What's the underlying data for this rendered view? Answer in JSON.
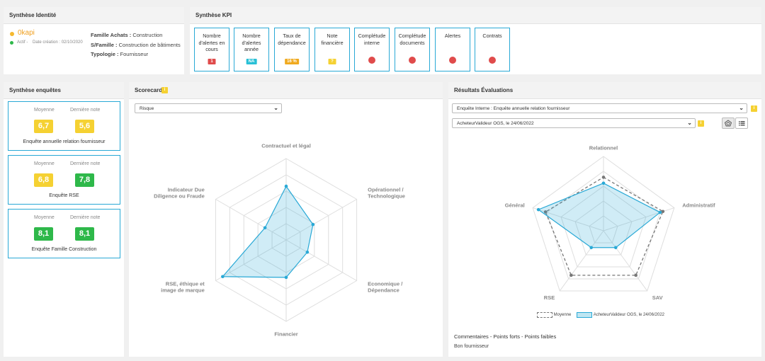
{
  "colors": {
    "accent": "#29a9d6",
    "red": "#e04b4b",
    "yellow": "#f5d132",
    "green": "#2eb84a",
    "orange": "#f0a91e",
    "cyan": "#29c0d6"
  },
  "identity": {
    "title": "Synthèse Identité",
    "name": "0kapi",
    "status": "Actif -",
    "created": "Date création : 02/10/2020",
    "famille_label": "Famille Achats :",
    "famille_value": "Construction",
    "sfamille_label": "S/Famille :",
    "sfamille_value": "Construction de bâtiments",
    "typologie_label": "Typologie :",
    "typologie_value": "Fournisseur"
  },
  "kpi": {
    "title": "Synthèse KPI",
    "cards": [
      {
        "label": "Nombre d'alertes en cours",
        "badge": "1",
        "badge_color": "#e04b4b"
      },
      {
        "label": "Nombre d'alertes année",
        "badge": "NA",
        "badge_color": "#29c0d6"
      },
      {
        "label": "Taux de dépendance",
        "badge": "16 %",
        "badge_color": "#f0a91e"
      },
      {
        "label": "Note financière",
        "badge": "?",
        "badge_color": "#f5d132"
      },
      {
        "label": "Complétude interne",
        "badge": "",
        "badge_color": ""
      },
      {
        "label": "Complétude documents",
        "badge": "",
        "badge_color": ""
      },
      {
        "label": "Alertes",
        "badge": "",
        "badge_color": ""
      },
      {
        "label": "Contrats",
        "badge": "",
        "badge_color": ""
      }
    ]
  },
  "surveys": {
    "title": "Synthèse enquêtes",
    "col_avg": "Moyenne",
    "col_last": "Dernière note",
    "items": [
      {
        "avg": "6,7",
        "last": "5,6",
        "label": "Enquête annuelle relation fournisseur",
        "avg_color": "#f5d132",
        "last_color": "#f5d132"
      },
      {
        "avg": "6,8",
        "last": "7,8",
        "label": "Enquête RSE",
        "avg_color": "#f5d132",
        "last_color": "#2eb84a"
      },
      {
        "avg": "8,1",
        "last": "8,1",
        "label": "Enquête Famille Construction",
        "avg_color": "#2eb84a",
        "last_color": "#2eb84a"
      }
    ]
  },
  "scorecard": {
    "title": "Scorecard",
    "info": "i",
    "select_value": "Risque",
    "chart_data": {
      "type": "radar",
      "axes": [
        "Contractuel et légal",
        "Opérationnel / Technologique",
        "Economique / Dépendance",
        "Financier",
        "RSE, éthique et image de marque",
        "Indicateur Due Diligence ou Fraude"
      ],
      "axis_labels": [
        [
          "Contractuel et légal"
        ],
        [
          "Opérationnel /",
          "Technologique"
        ],
        [
          "Economique /",
          "Dépendance"
        ],
        [
          "Financier"
        ],
        [
          "RSE, éthique et",
          "image de marque"
        ],
        [
          "Indicateur Due",
          "Diligence ou Fraude"
        ]
      ],
      "levels": 5,
      "max": 5,
      "series": [
        {
          "name": "Risque",
          "values": [
            3.3,
            1.9,
            1.5,
            2.3,
            4.5,
            1.5
          ],
          "color": "#29a9d6"
        }
      ]
    }
  },
  "evaluations": {
    "title": "Résultats Évaluations",
    "info": "i",
    "survey_select": "Enquête Interne : Enquête annuelle relation fournisseur",
    "evaluator_select": "AcheteurValideur OGS, le 24/06/2022",
    "chart_data": {
      "type": "radar",
      "axes": [
        "Relationnel",
        "Administratif",
        "SAV",
        "RSE",
        "Général"
      ],
      "levels": 5,
      "max": 5,
      "series": [
        {
          "name": "Moyenne",
          "values": [
            3.6,
            4.2,
            3.7,
            3.7,
            4.1
          ],
          "color": "#777",
          "dashed": true
        },
        {
          "name": "AcheteurValideur OGS, le 24/06/2022",
          "values": [
            3.2,
            4.0,
            1.4,
            1.4,
            4.6
          ],
          "color": "#29a9d6",
          "dashed": false
        }
      ]
    },
    "legend_avg": "Moyenne",
    "legend_eval": "AcheteurValideur OGS, le 24/06/2022",
    "comments_title": "Commentaires - Points forts - Points faibles",
    "comments_text": "Bon fournisseur"
  }
}
